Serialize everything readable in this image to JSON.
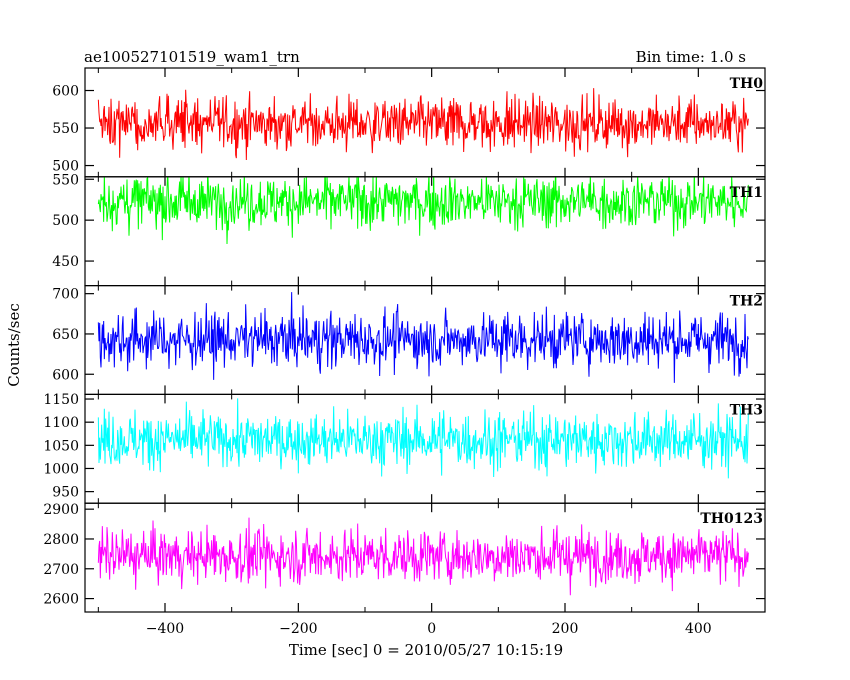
{
  "chart_data": {
    "type": "line",
    "title_left": "ae100527101519_wam1_trn",
    "title_right": "Bin time: 1.0 s",
    "xlabel": "Time [sec] 0 = 2010/05/27 10:15:19",
    "ylabel": "Counts/sec",
    "xlim": [
      -520,
      500
    ],
    "x_range": [
      -500,
      475
    ],
    "xticks": [
      -400,
      -200,
      0,
      200,
      400
    ],
    "grid": false,
    "panels": [
      {
        "name": "TH0",
        "color": "#ff0000",
        "ylim": [
          485,
          630
        ],
        "yticks": [
          500,
          550,
          600
        ],
        "mean": 556,
        "amplitude": 58
      },
      {
        "name": "TH1",
        "color": "#00ff00",
        "ylim": [
          420,
          553
        ],
        "yticks": [
          450,
          500,
          550
        ],
        "mean": 523,
        "amplitude": 55
      },
      {
        "name": "TH2",
        "color": "#0000ff",
        "ylim": [
          575,
          710
        ],
        "yticks": [
          600,
          650,
          700
        ],
        "mean": 643,
        "amplitude": 58
      },
      {
        "name": "TH3",
        "color": "#00ffff",
        "ylim": [
          925,
          1160
        ],
        "yticks": [
          950,
          1000,
          1050,
          1100,
          1150
        ],
        "mean": 1062,
        "amplitude": 100
      },
      {
        "name": "TH0123",
        "color": "#ff00ff",
        "ylim": [
          2555,
          2920
        ],
        "yticks": [
          2600,
          2700,
          2800,
          2900
        ],
        "mean": 2743,
        "amplitude": 150
      }
    ]
  }
}
